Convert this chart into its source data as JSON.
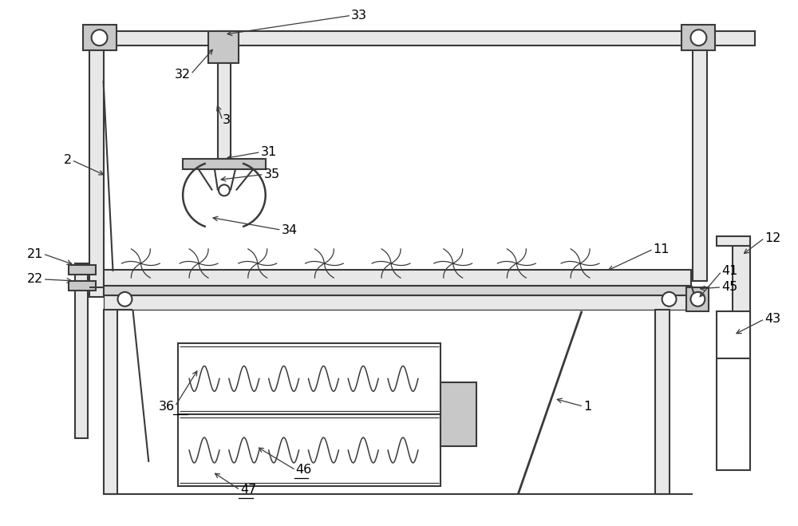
{
  "bg": "white",
  "lc": "#3a3a3a",
  "lw_thick": 2.5,
  "lw_med": 1.5,
  "lw_thin": 0.9,
  "gray_fill": "#c8c8c8",
  "light_fill": "#e8e8e8",
  "white_fill": "white"
}
